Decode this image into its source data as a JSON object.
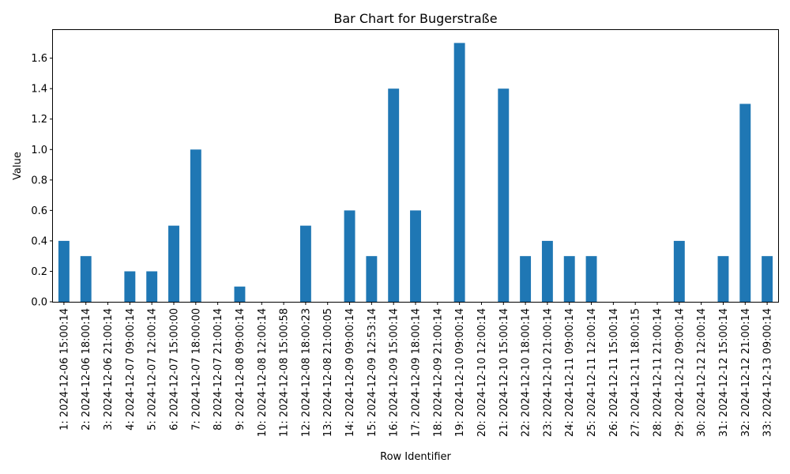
{
  "chart_data": {
    "type": "bar",
    "title": "Bar Chart for Bugerstraße",
    "xlabel": "Row Identifier",
    "ylabel": "Value",
    "ylim": [
      0,
      1.785
    ],
    "yticks": [
      "0.0",
      "0.2",
      "0.4",
      "0.6",
      "0.8",
      "1.0",
      "1.2",
      "1.4",
      "1.6"
    ],
    "bar_color": "#1f77b4",
    "grid": false,
    "categories": [
      "1: 2024-12-06 15:00:14",
      "2: 2024-12-06 18:00:14",
      "3: 2024-12-06 21:00:14",
      "4: 2024-12-07 09:00:14",
      "5: 2024-12-07 12:00:14",
      "6: 2024-12-07 15:00:00",
      "7: 2024-12-07 18:00:00",
      "8: 2024-12-07 21:00:14",
      "9: 2024-12-08 09:00:14",
      "10: 2024-12-08 12:00:14",
      "11: 2024-12-08 15:00:58",
      "12: 2024-12-08 18:00:23",
      "13: 2024-12-08 21:00:05",
      "14: 2024-12-09 09:00:14",
      "15: 2024-12-09 12:53:14",
      "16: 2024-12-09 15:00:14",
      "17: 2024-12-09 18:00:14",
      "18: 2024-12-09 21:00:14",
      "19: 2024-12-10 09:00:14",
      "20: 2024-12-10 12:00:14",
      "21: 2024-12-10 15:00:14",
      "22: 2024-12-10 18:00:14",
      "23: 2024-12-10 21:00:14",
      "24: 2024-12-11 09:00:14",
      "25: 2024-12-11 12:00:14",
      "26: 2024-12-11 15:00:14",
      "27: 2024-12-11 18:00:15",
      "28: 2024-12-11 21:00:14",
      "29: 2024-12-12 09:00:14",
      "30: 2024-12-12 12:00:14",
      "31: 2024-12-12 15:00:14",
      "32: 2024-12-12 21:00:14",
      "33: 2024-12-13 09:00:14"
    ],
    "values": [
      0.4,
      0.3,
      0.0,
      0.2,
      0.2,
      0.5,
      1.0,
      0.0,
      0.1,
      0.0,
      0.0,
      0.5,
      0.0,
      0.6,
      0.3,
      1.4,
      0.6,
      0.0,
      1.7,
      0.0,
      1.4,
      0.3,
      0.4,
      0.3,
      0.3,
      0.0,
      0.0,
      0.0,
      0.4,
      0.0,
      0.3,
      1.3,
      0.3
    ]
  }
}
